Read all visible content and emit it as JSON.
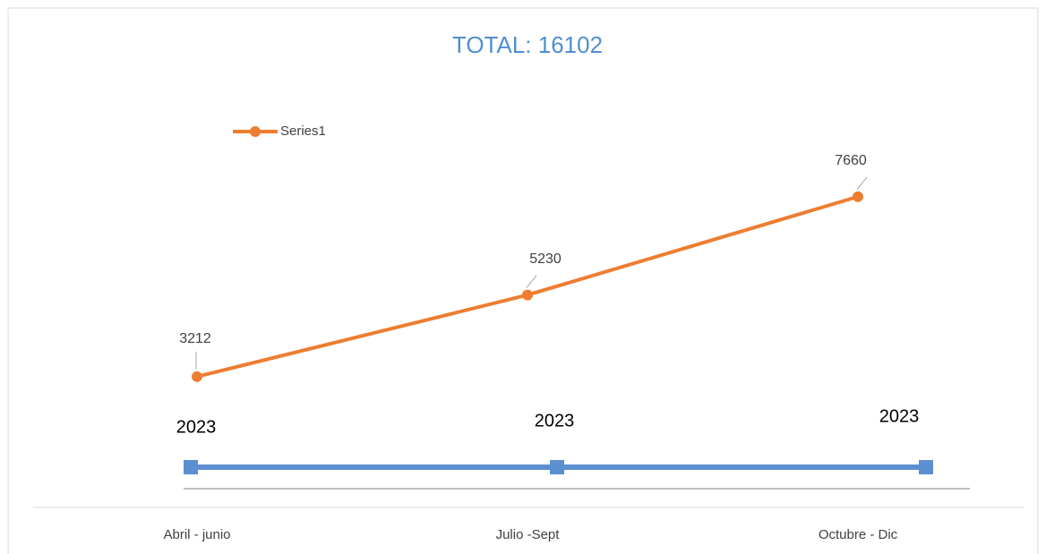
{
  "chart_data": {
    "type": "line",
    "title": "TOTAL: 16102",
    "categories": [
      "Abril - junio",
      "Julio -Sept",
      "Octubre - Dic"
    ],
    "series": [
      {
        "name": "Series1",
        "color": "#ed7d31",
        "values": [
          3212,
          5230,
          7660
        ]
      }
    ],
    "ylim": [
      0,
      10000
    ],
    "legend": "top-left",
    "timeline": {
      "color": "#5b8fd0",
      "labels": [
        "2023",
        "2023",
        "2023"
      ]
    }
  }
}
